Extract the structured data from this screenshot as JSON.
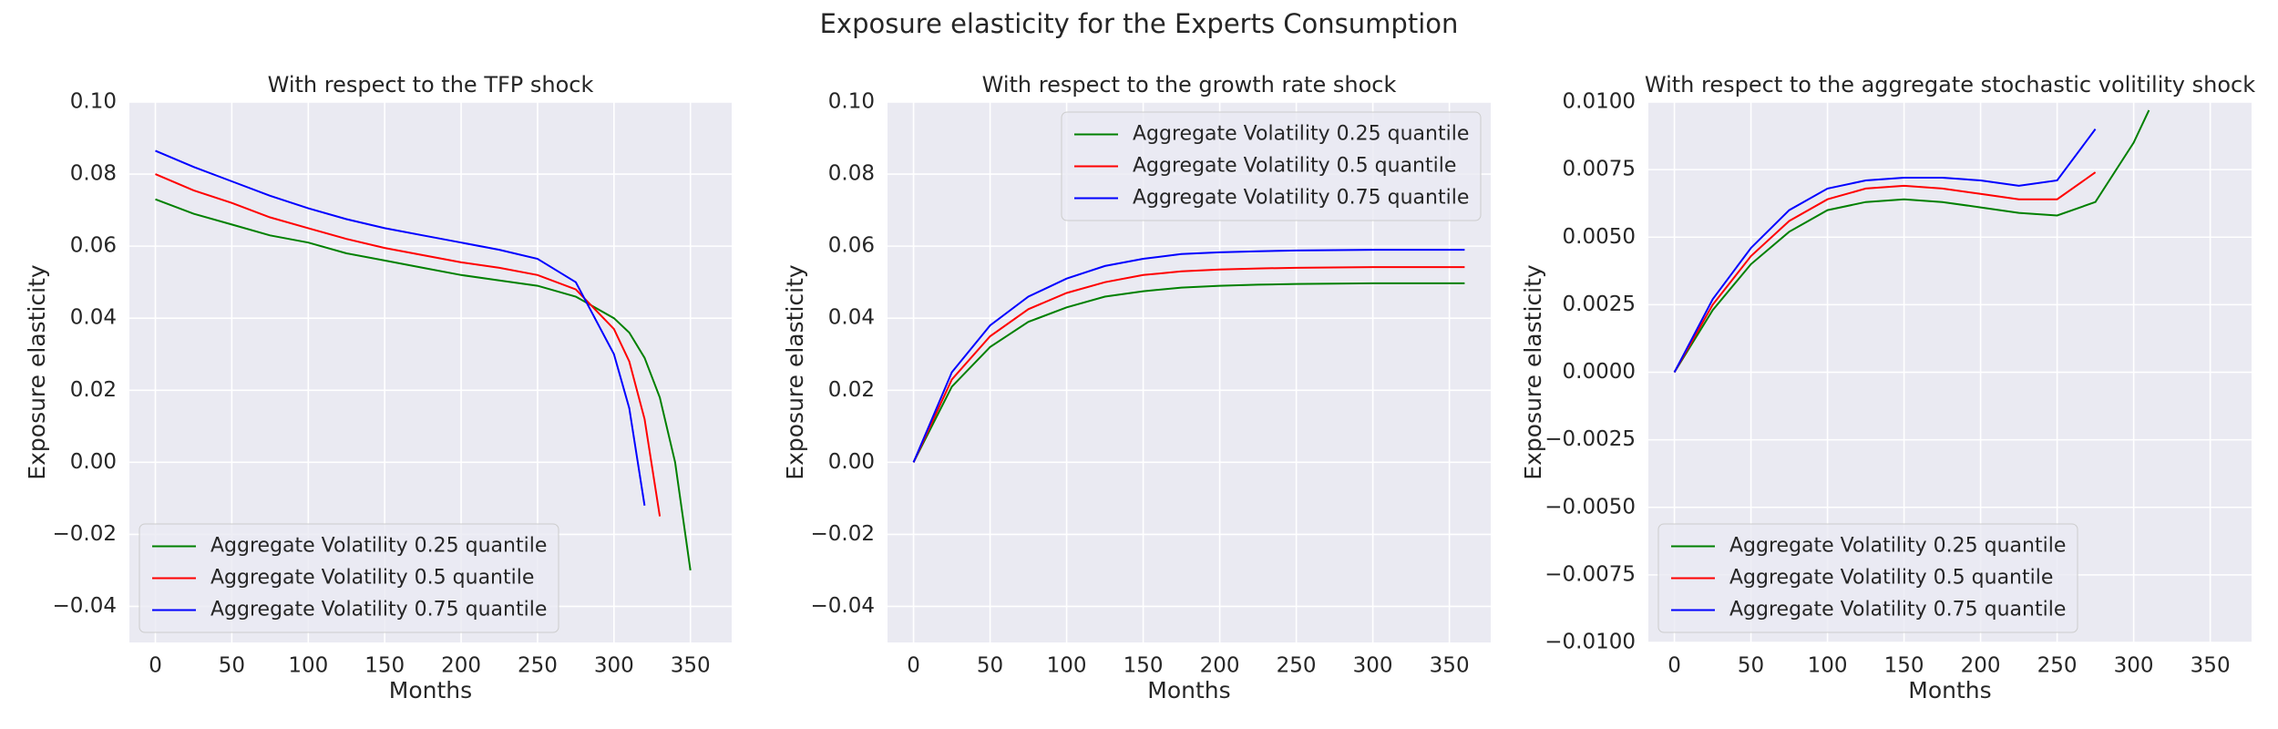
{
  "title": "Exposure elasticity for the Experts Consumption",
  "chart_data": [
    {
      "type": "line",
      "title": "With respect to the TFP shock",
      "xlabel": "Months",
      "ylabel": "Exposure elasticity",
      "x": [
        0,
        25,
        50,
        75,
        100,
        125,
        150,
        175,
        200,
        225,
        250,
        275,
        300,
        310,
        320,
        330,
        340,
        350,
        360
      ],
      "series": [
        {
          "name": "Aggregate Volatility 0.25 quantile",
          "color": "#008000",
          "values": [
            0.073,
            0.069,
            0.066,
            0.063,
            0.061,
            0.058,
            0.056,
            0.054,
            0.052,
            0.0505,
            0.049,
            0.046,
            0.04,
            0.036,
            0.029,
            0.018,
            0.0,
            -0.03,
            null
          ]
        },
        {
          "name": "Aggregate Volatility 0.5 quantile",
          "color": "#ff0000",
          "values": [
            0.08,
            0.0755,
            0.072,
            0.068,
            0.065,
            0.062,
            0.0595,
            0.0575,
            0.0555,
            0.054,
            0.052,
            0.048,
            0.037,
            0.028,
            0.012,
            -0.015,
            null,
            null,
            null
          ]
        },
        {
          "name": "Aggregate Volatility 0.75 quantile",
          "color": "#0000ff",
          "values": [
            0.0865,
            0.082,
            0.078,
            0.074,
            0.0705,
            0.0675,
            0.065,
            0.063,
            0.061,
            0.059,
            0.0565,
            0.05,
            0.03,
            0.015,
            -0.012,
            null,
            null,
            null,
            null
          ]
        }
      ],
      "xlim": [
        -17,
        377
      ],
      "xticks": [
        0,
        50,
        100,
        150,
        200,
        250,
        300,
        350
      ],
      "ylim": [
        -0.05,
        0.1
      ],
      "yticks": [
        {
          "value": -0.04,
          "label": "−0.04"
        },
        {
          "value": -0.02,
          "label": "−0.02"
        },
        {
          "value": 0,
          "label": "0.00"
        },
        {
          "value": 0.02,
          "label": "0.02"
        },
        {
          "value": 0.04,
          "label": "0.04"
        },
        {
          "value": 0.06,
          "label": "0.06"
        },
        {
          "value": 0.08,
          "label": "0.08"
        },
        {
          "value": 0.1,
          "label": "0.10"
        }
      ],
      "grid": true,
      "legend": "lower-left"
    },
    {
      "type": "line",
      "title": "With respect to the growth rate shock",
      "xlabel": "Months",
      "ylabel": "Exposure elasticity",
      "x": [
        0,
        25,
        50,
        75,
        100,
        125,
        150,
        175,
        200,
        225,
        250,
        275,
        300,
        325,
        350,
        360
      ],
      "series": [
        {
          "name": "Aggregate Volatility 0.25 quantile",
          "color": "#008000",
          "values": [
            0,
            0.021,
            0.032,
            0.039,
            0.043,
            0.046,
            0.0475,
            0.0485,
            0.049,
            0.0493,
            0.0495,
            0.0496,
            0.0497,
            0.0497,
            0.0497,
            0.0497
          ]
        },
        {
          "name": "Aggregate Volatility 0.5 quantile",
          "color": "#ff0000",
          "values": [
            0,
            0.023,
            0.035,
            0.0425,
            0.047,
            0.05,
            0.052,
            0.053,
            0.0535,
            0.0538,
            0.054,
            0.0541,
            0.0542,
            0.0542,
            0.0542,
            0.0542
          ]
        },
        {
          "name": "Aggregate Volatility 0.75 quantile",
          "color": "#0000ff",
          "values": [
            0,
            0.025,
            0.038,
            0.046,
            0.051,
            0.0545,
            0.0565,
            0.0578,
            0.0583,
            0.0586,
            0.0588,
            0.0589,
            0.059,
            0.059,
            0.059,
            0.059
          ]
        }
      ],
      "xlim": [
        -17,
        377
      ],
      "xticks": [
        0,
        50,
        100,
        150,
        200,
        250,
        300,
        350
      ],
      "ylim": [
        -0.05,
        0.1
      ],
      "yticks": [
        {
          "value": -0.04,
          "label": "−0.04"
        },
        {
          "value": -0.02,
          "label": "−0.02"
        },
        {
          "value": 0,
          "label": "0.00"
        },
        {
          "value": 0.02,
          "label": "0.02"
        },
        {
          "value": 0.04,
          "label": "0.04"
        },
        {
          "value": 0.06,
          "label": "0.06"
        },
        {
          "value": 0.08,
          "label": "0.08"
        },
        {
          "value": 0.1,
          "label": "0.10"
        }
      ],
      "grid": true,
      "legend": "upper-right"
    },
    {
      "type": "line",
      "title": "With respect to the aggregate stochastic volitility shock",
      "xlabel": "Months",
      "ylabel": "Exposure elasticity",
      "x": [
        0,
        25,
        50,
        75,
        100,
        125,
        150,
        175,
        200,
        225,
        250,
        275,
        300,
        310,
        320
      ],
      "series": [
        {
          "name": "Aggregate Volatility 0.25 quantile",
          "color": "#008000",
          "values": [
            0,
            0.0023,
            0.004,
            0.0052,
            0.006,
            0.0063,
            0.0064,
            0.0063,
            0.0061,
            0.0059,
            0.0058,
            0.0063,
            0.0085,
            0.0097,
            null
          ]
        },
        {
          "name": "Aggregate Volatility 0.5 quantile",
          "color": "#ff0000",
          "values": [
            0,
            0.0025,
            0.0043,
            0.0056,
            0.0064,
            0.0068,
            0.0069,
            0.0068,
            0.0066,
            0.0064,
            0.0064,
            0.0074,
            null,
            null,
            null
          ]
        },
        {
          "name": "Aggregate Volatility 0.75 quantile",
          "color": "#0000ff",
          "values": [
            0,
            0.0027,
            0.0046,
            0.006,
            0.0068,
            0.0071,
            0.0072,
            0.0072,
            0.0071,
            0.0069,
            0.0071,
            0.009,
            null,
            null,
            null
          ]
        }
      ],
      "xlim": [
        -17,
        377
      ],
      "xticks": [
        0,
        50,
        100,
        150,
        200,
        250,
        300,
        350
      ],
      "ylim": [
        -0.01,
        0.01
      ],
      "yticks": [
        {
          "value": -0.01,
          "label": "−0.0100"
        },
        {
          "value": -0.0075,
          "label": "−0.0075"
        },
        {
          "value": -0.005,
          "label": "−0.0050"
        },
        {
          "value": -0.0025,
          "label": "−0.0025"
        },
        {
          "value": 0,
          "label": "0.0000"
        },
        {
          "value": 0.0025,
          "label": "0.0025"
        },
        {
          "value": 0.005,
          "label": "0.0050"
        },
        {
          "value": 0.0075,
          "label": "0.0075"
        },
        {
          "value": 0.01,
          "label": "0.0100"
        }
      ],
      "grid": true,
      "legend": "lower-left"
    }
  ]
}
